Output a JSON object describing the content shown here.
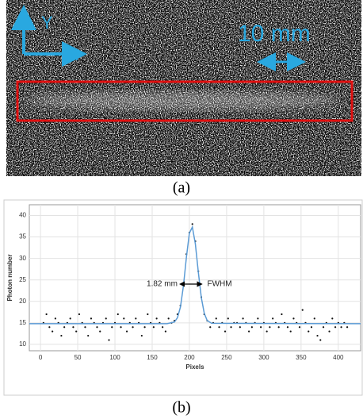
{
  "image_a": {
    "axis_y": "Y",
    "axis_x": "x",
    "scale": "10 mm",
    "caption": "(a)"
  },
  "caption_b": "(b)",
  "chart_data": {
    "type": "scatter",
    "xlabel": "Pixels",
    "ylabel": "Photon number",
    "xlim": [
      -15,
      430
    ],
    "ylim": [
      8.5,
      42.5
    ],
    "xticks": [
      0,
      50,
      100,
      150,
      200,
      250,
      300,
      350,
      400
    ],
    "yticks": [
      10,
      15,
      20,
      25,
      30,
      35,
      40
    ],
    "grid": true,
    "annotations": {
      "width": "1.82 mm",
      "label": "FWHM"
    },
    "series": [
      {
        "type": "scatter",
        "color": "#111111",
        "x": [
          4,
          8,
          12,
          16,
          20,
          24,
          28,
          32,
          36,
          40,
          44,
          48,
          52,
          56,
          60,
          64,
          68,
          72,
          76,
          80,
          84,
          88,
          92,
          96,
          100,
          104,
          108,
          112,
          116,
          120,
          124,
          128,
          132,
          136,
          140,
          144,
          148,
          152,
          156,
          160,
          164,
          168,
          172,
          176,
          180,
          184,
          188,
          192,
          196,
          200,
          204,
          208,
          212,
          216,
          220,
          224,
          228,
          232,
          236,
          240,
          244,
          248,
          252,
          256,
          260,
          264,
          268,
          272,
          276,
          280,
          284,
          288,
          292,
          296,
          300,
          304,
          308,
          312,
          316,
          320,
          324,
          328,
          332,
          336,
          340,
          344,
          348,
          352,
          356,
          360,
          364,
          368,
          372,
          376,
          380,
          384,
          388,
          392,
          396,
          400,
          404,
          408,
          412
        ],
        "values": [
          15,
          17,
          14,
          13,
          16,
          15,
          12,
          14,
          15,
          16,
          14,
          13,
          17,
          15,
          14,
          12,
          16,
          15,
          14,
          13,
          15,
          16,
          11,
          14,
          15,
          17,
          14,
          16,
          13,
          15,
          14,
          16,
          15,
          12,
          14,
          17,
          15,
          14,
          16,
          15,
          14,
          13,
          16,
          15,
          15.5,
          17,
          19,
          24,
          31,
          36,
          38,
          34,
          27,
          21,
          17,
          15.5,
          14,
          15,
          16,
          14,
          15,
          13,
          16,
          14,
          15,
          15,
          14,
          16,
          15,
          13,
          14,
          15,
          16,
          14,
          15,
          13,
          14,
          16,
          15,
          14,
          17,
          15,
          14,
          13,
          16,
          15,
          14,
          18,
          15,
          13,
          14,
          16,
          12,
          11,
          14,
          15,
          13,
          16,
          14,
          15,
          14,
          15,
          14
        ]
      },
      {
        "type": "line",
        "color": "#5b9bd5",
        "x": [
          -15,
          170,
          180,
          184,
          188,
          192,
          196,
          200,
          204,
          208,
          212,
          216,
          220,
          224,
          230,
          430
        ],
        "values": [
          14.8,
          14.8,
          15.2,
          16.2,
          18.7,
          23.6,
          30.3,
          35.9,
          37.3,
          33.4,
          26.8,
          20.9,
          17.2,
          15.5,
          14.9,
          14.8
        ]
      }
    ]
  }
}
